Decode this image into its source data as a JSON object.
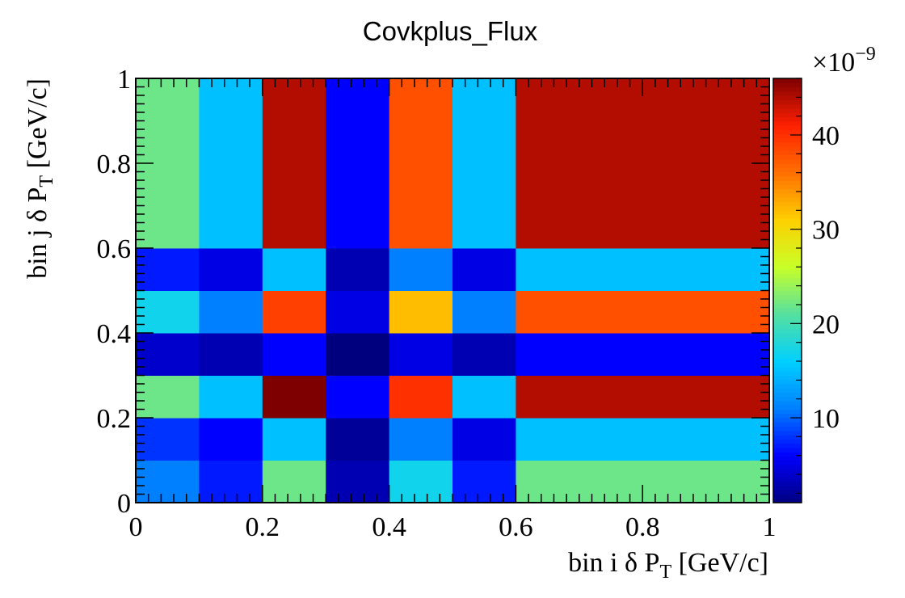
{
  "chart_data": {
    "type": "heatmap",
    "title": "Covkplus_Flux",
    "xlabel": {
      "main": "bin i δ P",
      "sub": "T",
      "unit": " [GeV/c]"
    },
    "ylabel": {
      "main": "bin j δ P",
      "sub": "T",
      "unit": " [GeV/c]"
    },
    "x_edges": [
      0,
      0.1,
      0.2,
      0.3,
      0.4,
      0.5,
      0.6,
      1.0
    ],
    "y_edges": [
      0,
      0.1,
      0.2,
      0.3,
      0.4,
      0.5,
      0.6,
      1.0
    ],
    "xlim": [
      0,
      1
    ],
    "ylim": [
      0,
      1
    ],
    "x_ticks": [
      "0",
      "0.2",
      "0.4",
      "0.6",
      "0.8",
      "1"
    ],
    "y_ticks": [
      "0",
      "0.2",
      "0.4",
      "0.6",
      "0.8",
      "1"
    ],
    "values_rows_bottom_to_top": [
      [
        11,
        7,
        22,
        3,
        17,
        7,
        22
      ],
      [
        8,
        6,
        15,
        2,
        11,
        5,
        15
      ],
      [
        22,
        15,
        46,
        6,
        40,
        15,
        44
      ],
      [
        4,
        3,
        6,
        1,
        5,
        3,
        6
      ],
      [
        17,
        11,
        39,
        5,
        32,
        11,
        38
      ],
      [
        7,
        5,
        15,
        3,
        11,
        5,
        15
      ],
      [
        22,
        15,
        44,
        6,
        38,
        15,
        44
      ]
    ],
    "z_range": [
      1,
      46
    ],
    "z_ticks": [
      "10",
      "20",
      "30",
      "40"
    ],
    "z_tick_values": [
      10,
      20,
      30,
      40
    ],
    "z_exponent": {
      "base": "×10",
      "exp": "−9"
    },
    "colormap": [
      "#00007f",
      "#0000ff",
      "#007fff",
      "#00d0ff",
      "#55e0a0",
      "#c8ff28",
      "#ffd000",
      "#ff7000",
      "#ff2000",
      "#7f0000"
    ]
  }
}
